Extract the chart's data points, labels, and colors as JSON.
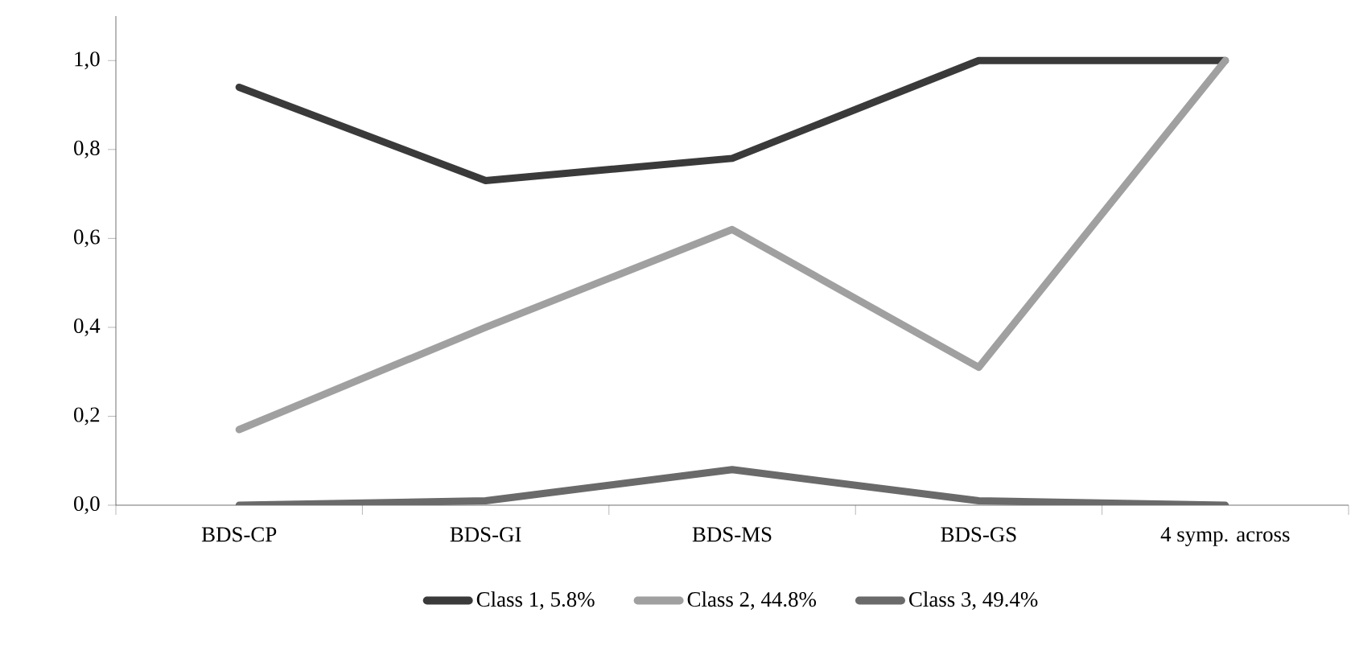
{
  "chart_data": {
    "type": "line",
    "categories": [
      "BDS-CP",
      "BDS-GI",
      "BDS-MS",
      "BDS-GS",
      "4 symp. across"
    ],
    "series": [
      {
        "name": "Class 1, 5.8%",
        "color": "#3a3a3a",
        "values": [
          0.94,
          0.73,
          0.78,
          1.0,
          1.0
        ]
      },
      {
        "name": "Class 2, 44.8%",
        "color": "#a0a0a0",
        "values": [
          0.17,
          0.4,
          0.62,
          0.31,
          1.0
        ]
      },
      {
        "name": "Class 3, 49.4%",
        "color": "#6a6a6a",
        "values": [
          0.0,
          0.01,
          0.08,
          0.01,
          0.0
        ]
      }
    ],
    "ylim": [
      0,
      1.1
    ],
    "yticks": [
      {
        "value": 0,
        "label": "0,0"
      },
      {
        "value": 0.2,
        "label": "0,2"
      },
      {
        "value": 0.4,
        "label": "0,4"
      },
      {
        "value": 0.6,
        "label": "0,6"
      },
      {
        "value": 0.8,
        "label": "0,8"
      },
      {
        "value": 1.0,
        "label": "1,0"
      }
    ],
    "grid": false,
    "legend": "bottom",
    "marker": "none",
    "line_style": "solid"
  }
}
